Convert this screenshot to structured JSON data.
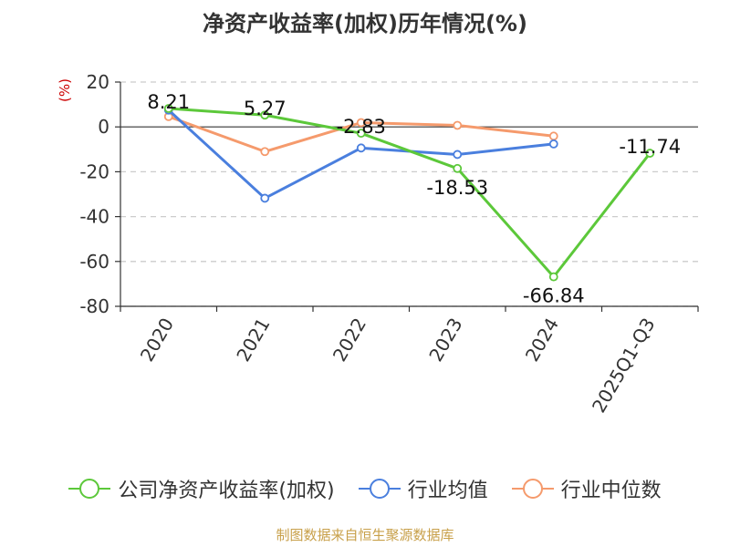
{
  "title": "净资产收益率(加权)历年情况(%)",
  "source": "制图数据来自恒生聚源数据库",
  "chart_data": {
    "type": "line",
    "title": "净资产收益率(加权)历年情况(%)",
    "xlabel": "",
    "ylabel": "(%)",
    "categories": [
      "2020",
      "2021",
      "2022",
      "2023",
      "2024",
      "2025Q1-Q3"
    ],
    "ylim": [
      -80,
      20
    ],
    "yticks": [
      20,
      0,
      -20,
      -40,
      -60,
      -80
    ],
    "grid": "horizontal dashed",
    "legend": "bottom",
    "series": [
      {
        "name": "公司净资产收益率(加权)",
        "color": "#5cc83a",
        "values": [
          8.21,
          5.27,
          -2.83,
          -18.53,
          -66.84,
          -11.74
        ],
        "labels": [
          "8.21",
          "5.27",
          "-2.83",
          "-18.53",
          "-66.84",
          "-11.74"
        ]
      },
      {
        "name": "行业均值",
        "color": "#4a7fde",
        "values": [
          7.5,
          -31.8,
          -9.4,
          -12.3,
          -7.6,
          null
        ]
      },
      {
        "name": "行业中位数",
        "color": "#f59a6c",
        "values": [
          4.6,
          -11.0,
          1.9,
          0.7,
          -4.1,
          null
        ]
      }
    ]
  }
}
